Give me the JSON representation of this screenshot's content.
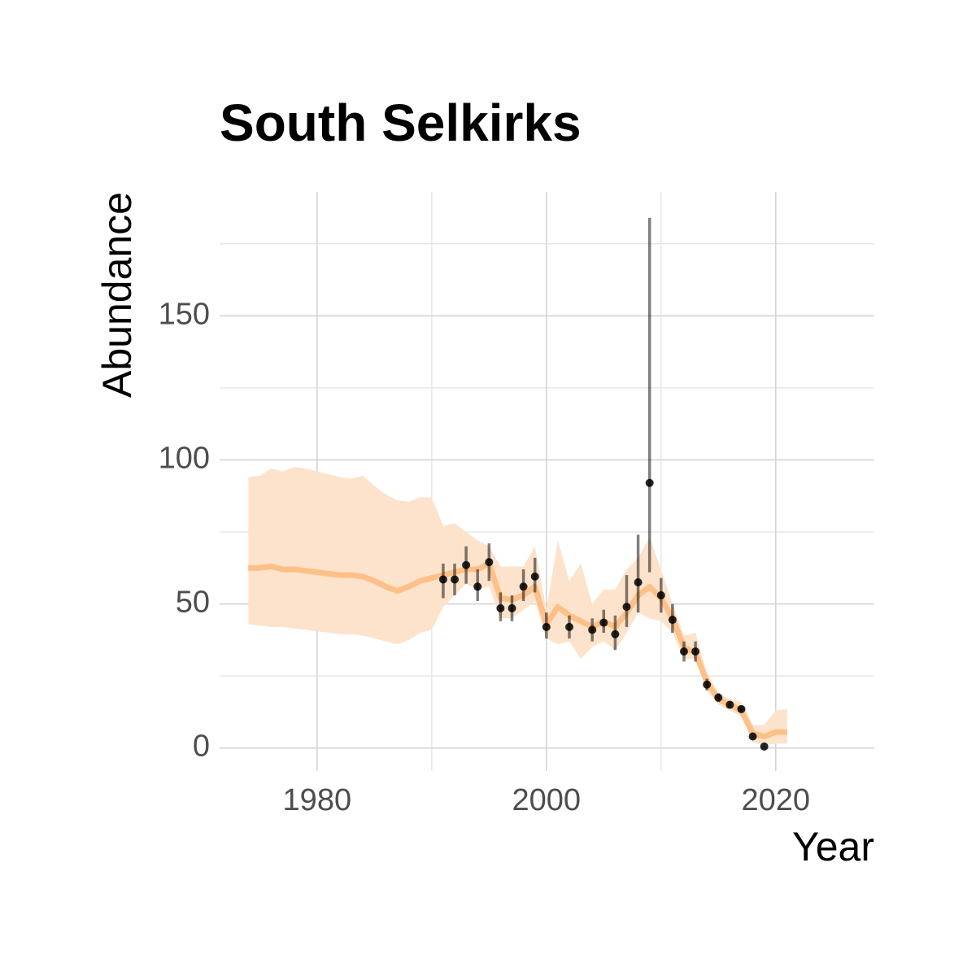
{
  "chart_data": {
    "type": "line",
    "title": "South Selkirks",
    "x_label": "Year",
    "y_label": "Abundance",
    "xlim": [
      1971.5,
      2028.6
    ],
    "ylim": [
      -8,
      193
    ],
    "xticks": [
      1980,
      2000,
      2020
    ],
    "yticks": [
      0,
      50,
      100,
      150
    ],
    "grid": true,
    "estimate": {
      "color": "#fdc088",
      "band_color": "#fde3cb",
      "x": [
        1974,
        1975,
        1976,
        1977,
        1978,
        1979,
        1980,
        1981,
        1982,
        1983,
        1984,
        1985,
        1986,
        1987,
        1988,
        1989,
        1990,
        1991,
        1992,
        1993,
        1994,
        1995,
        1996,
        1997,
        1998,
        1999,
        2000,
        2001,
        2002,
        2003,
        2004,
        2005,
        2006,
        2007,
        2008,
        2009,
        2010,
        2011,
        2012,
        2013,
        2014,
        2015,
        2016,
        2017,
        2018,
        2019,
        2020,
        2021
      ],
      "values": [
        62.5,
        62.5,
        63,
        62,
        62,
        61.5,
        61,
        60.5,
        60,
        60,
        59.5,
        58,
        56,
        54.5,
        56,
        58,
        59,
        60,
        61,
        62,
        62,
        64,
        52,
        51.5,
        53,
        56,
        43,
        49,
        46,
        44,
        42,
        44,
        42,
        47,
        53,
        56,
        52,
        45,
        35,
        33,
        23,
        17,
        15,
        13,
        5,
        4,
        5.5,
        5.5
      ],
      "lower": [
        43,
        42.5,
        42,
        42,
        41.5,
        41,
        40.5,
        40,
        39.5,
        39.5,
        39,
        38,
        37,
        36,
        37.5,
        40,
        41,
        49,
        53,
        57,
        55,
        56,
        45,
        45,
        48,
        51,
        38,
        36,
        37,
        31,
        35,
        37,
        34,
        40,
        47,
        45,
        44,
        40,
        31,
        31,
        20,
        15,
        13,
        11,
        2,
        1,
        1.5,
        1.5
      ],
      "upper": [
        94,
        94.5,
        97,
        96,
        97.5,
        97,
        96,
        95,
        94,
        93.5,
        94.5,
        91,
        88,
        86,
        85.5,
        87,
        87,
        77,
        78,
        75,
        72,
        70,
        63,
        63,
        63,
        70,
        48,
        72,
        58,
        64,
        50,
        55,
        55,
        62,
        66,
        73,
        62,
        50,
        39,
        40,
        26,
        19,
        17,
        16,
        8,
        8,
        13,
        13.5
      ]
    },
    "observations": {
      "color": "#000000",
      "x": [
        1991,
        1992,
        1993,
        1994,
        1995,
        1996,
        1997,
        1998,
        1999,
        2000,
        2002,
        2004,
        2005,
        2006,
        2007,
        2008,
        2009,
        2010,
        2011,
        2012,
        2013,
        2014,
        2015,
        2016,
        2017,
        2018,
        2019
      ],
      "values": [
        58.5,
        58.5,
        63.5,
        56,
        64.5,
        48.5,
        48.5,
        56,
        59.5,
        42,
        42,
        41,
        43.5,
        39.5,
        49,
        57.5,
        92,
        53,
        44.5,
        33.5,
        33.5,
        22,
        17.5,
        15,
        13.5,
        4,
        0.5
      ],
      "lower": [
        52,
        53,
        57,
        51,
        58,
        44,
        44,
        51,
        54,
        38,
        38,
        37,
        40,
        34,
        42,
        47,
        61,
        47,
        40,
        30,
        30,
        20,
        16,
        14,
        12.5,
        3.5,
        0.3
      ],
      "upper": [
        64,
        64,
        70,
        62,
        71,
        54,
        53,
        62,
        66,
        47,
        46,
        45,
        48,
        46,
        60,
        74,
        184,
        59,
        50,
        37,
        37,
        24,
        19,
        16,
        14.5,
        4.5,
        0.7
      ]
    }
  }
}
